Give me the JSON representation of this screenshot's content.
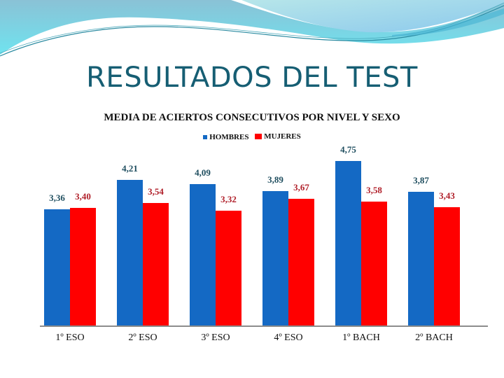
{
  "slide": {
    "title": "RESULTADOS DEL TEST"
  },
  "colors": {
    "hombres": "#1469c4",
    "mujeres": "#ff0000",
    "hombres_label": "#1f4e5f",
    "mujeres_label": "#b0202a",
    "title": "#165e73"
  },
  "chart_data": {
    "type": "bar",
    "title": "MEDIA DE ACIERTOS CONSECUTIVOS POR NIVEL Y SEXO",
    "xlabel": "",
    "ylabel": "",
    "categories": [
      "1º ESO",
      "2º ESO",
      "3º ESO",
      "4º ESO",
      "1º BACH",
      "2º BACH"
    ],
    "series": [
      {
        "name": "HOMBRES",
        "values": [
          3.36,
          4.21,
          4.09,
          3.89,
          4.75,
          3.87
        ],
        "labels": [
          "3,36",
          "4,21",
          "4,09",
          "3,89",
          "4,75",
          "3,87"
        ]
      },
      {
        "name": "MUJERES",
        "values": [
          3.4,
          3.54,
          3.32,
          3.67,
          3.58,
          3.43
        ],
        "labels": [
          "3,40",
          "3,54",
          "3,32",
          "3,67",
          "3,58",
          "3,43"
        ]
      }
    ],
    "ylim": [
      0,
      5
    ],
    "grid": false,
    "legend_position": "top",
    "y_axis_visible": false
  }
}
